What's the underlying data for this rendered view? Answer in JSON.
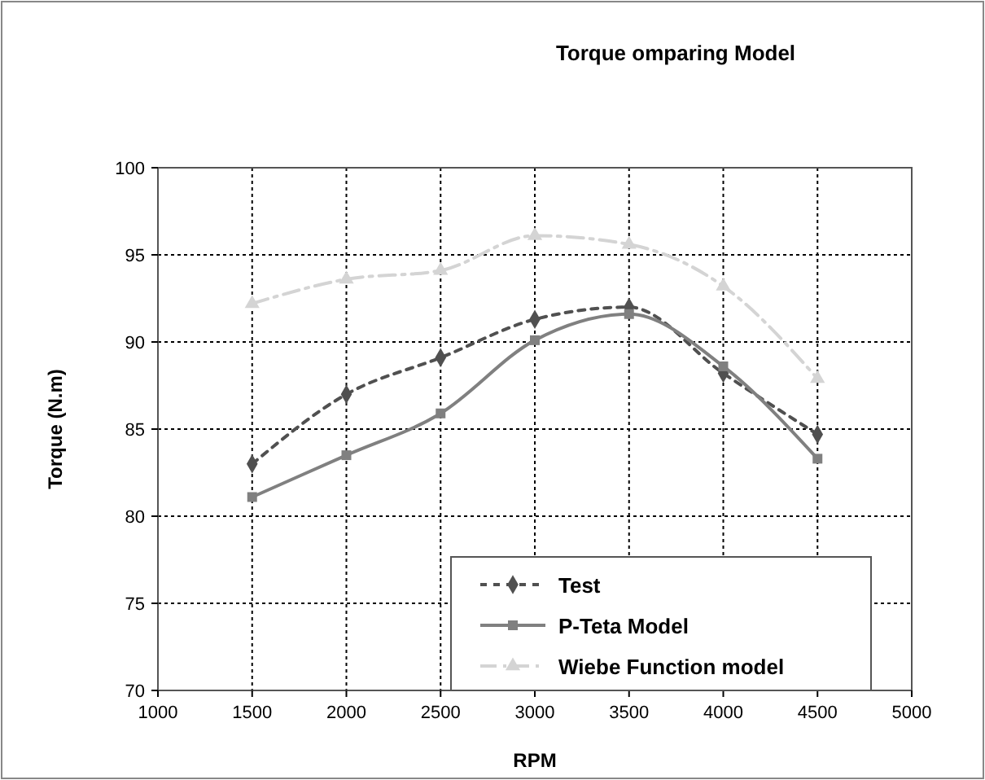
{
  "chart_data": {
    "type": "line",
    "title": "Torque omparing Model",
    "xlabel": "RPM",
    "ylabel": "Torque (N.m)",
    "x": [
      1500,
      2000,
      2500,
      3000,
      3500,
      4000,
      4500
    ],
    "xlim": [
      1000,
      5000
    ],
    "xticks": [
      1000,
      1500,
      2000,
      2500,
      3000,
      3500,
      4000,
      4500,
      5000
    ],
    "ylim": [
      70,
      100
    ],
    "yticks": [
      70,
      75,
      80,
      85,
      90,
      95,
      100
    ],
    "grid": true,
    "legend": "bottom",
    "series": [
      {
        "name": "Test",
        "color": "#505050",
        "values": [
          83.0,
          87.0,
          89.1,
          91.3,
          92.0,
          88.2,
          84.7
        ],
        "marker": "diamond",
        "line_style": "dashed"
      },
      {
        "name": "P-Teta Model",
        "color": "#808080",
        "values": [
          81.1,
          83.5,
          85.9,
          90.1,
          91.6,
          88.6,
          83.3
        ],
        "marker": "square",
        "line_style": "solid"
      },
      {
        "name": "Wiebe Function model",
        "color": "#d4d4d4",
        "values": [
          92.2,
          93.6,
          94.1,
          96.1,
          95.6,
          93.2,
          87.9
        ],
        "marker": "triangle",
        "line_style": "dashdot"
      }
    ]
  }
}
